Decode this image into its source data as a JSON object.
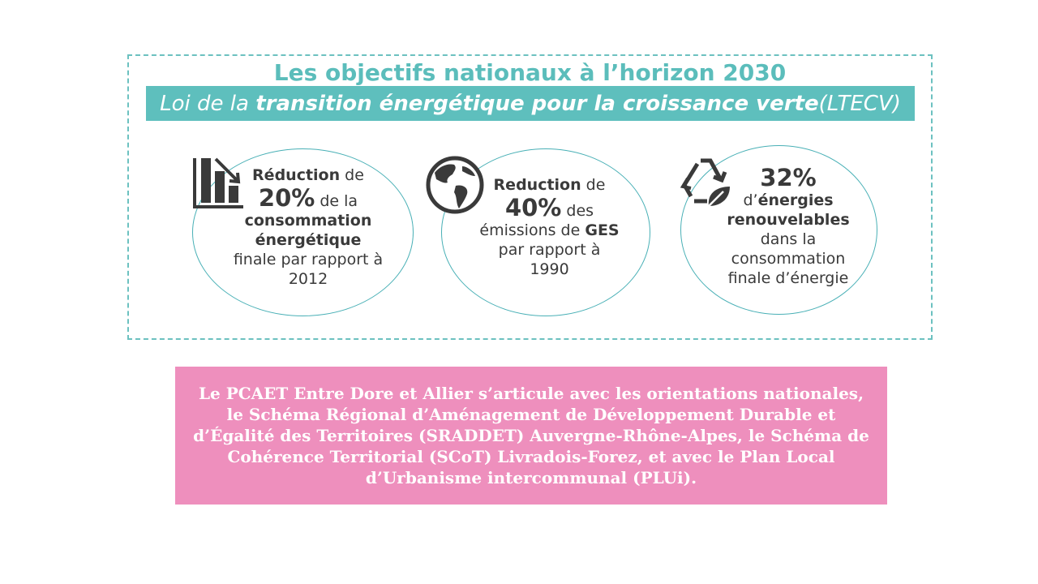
{
  "header": {
    "title": "Les objectifs nationaux à l’horizon 2030",
    "subtitle_pre": "Loi de la ",
    "subtitle_bold": "transition énergétique pour la croissance verte",
    "subtitle_post": " (LTECV)"
  },
  "objectives": [
    {
      "icon": "bar-chart-decrease-icon",
      "word": "Réduction",
      "connector": " de",
      "percent": "20%",
      "percent_suffix": " de la",
      "bold_line1": "consommation",
      "bold_line2": "énergétique",
      "line3": "finale par rapport à",
      "line4": "2012"
    },
    {
      "icon": "globe-icon",
      "word": "Reduction",
      "connector": " de",
      "percent": "40%",
      "percent_suffix": " des",
      "line_prefix": "émissions de ",
      "line_bold": "GES",
      "line3": "par rapport à",
      "line4": "1990"
    },
    {
      "icon": "recycle-leaf-icon",
      "percent": "32%",
      "line_prefix": "d’",
      "bold_line1": "énergies",
      "bold_line2": "renouvelables",
      "line3": "dans la",
      "line4": "consommation",
      "line5": "finale d’énergie"
    }
  ],
  "note": {
    "text": "Le PCAET Entre Dore et Allier s’articule avec les orientations nationales, le Schéma Régional d’Aménagement de Développement Durable et d’Égalité des Territoires (SRADDET) Auvergne-Rhône-Alpes, le Schéma de Cohérence Territorial (SCoT) Livradois-Forez, et avec le Plan Local d’Urbanisme intercommunal (PLUi)."
  },
  "colors": {
    "teal": "#5ebfbd",
    "pink": "#ee8fbd",
    "text": "#3a3a3a"
  }
}
